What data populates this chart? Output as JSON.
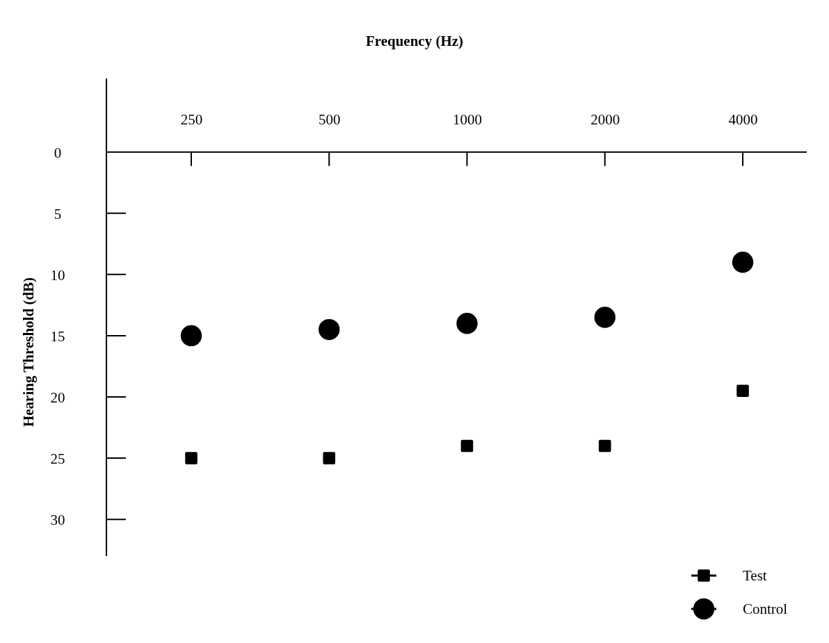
{
  "chart_data": {
    "type": "scatter",
    "title": "Frequency (Hz)",
    "ylabel": "Hearing Threshold (dB)",
    "categories": [
      "250",
      "500",
      "1000",
      "2000",
      "4000"
    ],
    "ylim": [
      33,
      -6
    ],
    "yticks": [
      0,
      5,
      10,
      15,
      20,
      25,
      30
    ],
    "series": [
      {
        "name": "Test",
        "color": "#000000",
        "marker": "square",
        "values": [
          25,
          25,
          24,
          24,
          19.5
        ]
      },
      {
        "name": "Control",
        "color": "#000000",
        "marker": "circle",
        "values": [
          15,
          14.5,
          14,
          13.5,
          9
        ]
      }
    ],
    "legend": "bottom right"
  }
}
